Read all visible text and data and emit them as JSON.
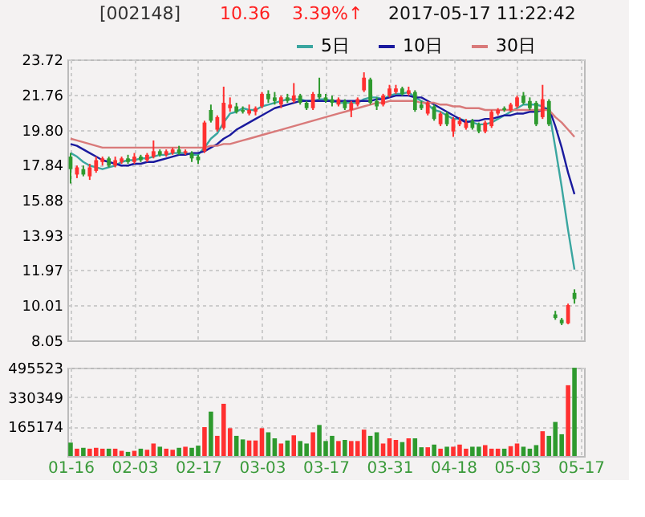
{
  "chart_data": [
    {
      "type": "candlestick",
      "annotations": [
        "[002148]",
        "10.36",
        "3.39%↑",
        "2017-05-17 11:22:42"
      ],
      "categories": [
        "01-16",
        null,
        null,
        null,
        null,
        null,
        null,
        null,
        null,
        null,
        "02-03",
        null,
        null,
        null,
        null,
        null,
        null,
        null,
        null,
        null,
        "02-17",
        null,
        null,
        null,
        null,
        null,
        null,
        null,
        null,
        null,
        "03-03",
        null,
        null,
        null,
        null,
        null,
        null,
        null,
        null,
        null,
        "03-17",
        null,
        null,
        null,
        null,
        null,
        null,
        null,
        null,
        null,
        "03-31",
        null,
        null,
        null,
        null,
        null,
        null,
        null,
        null,
        null,
        "04-18",
        null,
        null,
        null,
        null,
        null,
        null,
        null,
        null,
        null,
        "05-03",
        null,
        null,
        null,
        null,
        null,
        null,
        null,
        null,
        null,
        "05-17"
      ],
      "ohlc": [
        [
          18.3,
          18.5,
          16.8,
          17.6
        ],
        [
          17.3,
          17.8,
          17.1,
          17.7
        ],
        [
          17.6,
          17.8,
          17.2,
          17.3
        ],
        [
          17.2,
          17.9,
          17.0,
          17.7
        ],
        [
          17.5,
          18.3,
          17.4,
          18.1
        ],
        [
          18.0,
          18.3,
          17.8,
          18.2
        ],
        [
          18.2,
          18.3,
          17.7,
          17.8
        ],
        [
          17.8,
          18.3,
          17.7,
          18.1
        ],
        [
          18.0,
          18.3,
          17.9,
          18.2
        ],
        [
          18.2,
          18.4,
          17.9,
          18.0
        ],
        [
          18.0,
          18.5,
          17.9,
          18.3
        ],
        [
          18.3,
          18.4,
          18.0,
          18.1
        ],
        [
          18.1,
          18.5,
          18.0,
          18.4
        ],
        [
          18.3,
          19.2,
          18.2,
          18.6
        ],
        [
          18.6,
          18.7,
          18.3,
          18.4
        ],
        [
          18.4,
          18.7,
          18.3,
          18.6
        ],
        [
          18.5,
          18.8,
          18.4,
          18.7
        ],
        [
          18.7,
          18.9,
          18.4,
          18.5
        ],
        [
          18.5,
          18.7,
          18.4,
          18.6
        ],
        [
          18.5,
          18.6,
          18.0,
          18.2
        ],
        [
          18.3,
          18.4,
          17.9,
          18.1
        ],
        [
          18.6,
          20.3,
          18.5,
          20.2
        ],
        [
          20.9,
          21.2,
          20.2,
          20.3
        ],
        [
          19.8,
          20.6,
          19.7,
          20.5
        ],
        [
          19.9,
          22.2,
          19.8,
          21.3
        ],
        [
          21.0,
          21.6,
          20.8,
          21.2
        ],
        [
          21.1,
          21.3,
          20.7,
          20.8
        ],
        [
          20.9,
          21.1,
          20.7,
          20.8
        ],
        [
          20.7,
          21.2,
          20.6,
          20.9
        ],
        [
          20.8,
          21.1,
          20.6,
          21.0
        ],
        [
          21.1,
          21.9,
          21.0,
          21.8
        ],
        [
          21.8,
          22.0,
          21.3,
          21.5
        ],
        [
          21.6,
          21.9,
          21.2,
          21.4
        ],
        [
          21.2,
          21.7,
          21.0,
          21.6
        ],
        [
          21.6,
          21.8,
          21.3,
          21.4
        ],
        [
          21.4,
          22.4,
          21.3,
          21.7
        ],
        [
          21.7,
          21.8,
          21.2,
          21.3
        ],
        [
          21.3,
          21.4,
          20.9,
          21.0
        ],
        [
          21.0,
          21.9,
          20.9,
          21.8
        ],
        [
          21.8,
          22.7,
          21.5,
          21.6
        ],
        [
          21.6,
          21.8,
          21.3,
          21.4
        ],
        [
          21.5,
          21.7,
          21.1,
          21.3
        ],
        [
          21.2,
          21.6,
          21.1,
          21.5
        ],
        [
          21.4,
          21.5,
          20.9,
          21.0
        ],
        [
          20.9,
          21.4,
          20.5,
          21.3
        ],
        [
          21.2,
          21.6,
          21.1,
          21.5
        ],
        [
          22.0,
          23.0,
          21.9,
          22.7
        ],
        [
          22.6,
          22.7,
          21.2,
          21.3
        ],
        [
          21.4,
          21.6,
          20.9,
          21.1
        ],
        [
          21.2,
          21.8,
          21.1,
          21.7
        ],
        [
          21.7,
          22.3,
          21.6,
          22.1
        ],
        [
          21.9,
          22.3,
          21.8,
          22.1
        ],
        [
          22.1,
          22.2,
          21.7,
          21.8
        ],
        [
          21.8,
          22.2,
          21.7,
          22.0
        ],
        [
          21.9,
          22.0,
          20.8,
          20.9
        ],
        [
          21.2,
          21.4,
          20.9,
          21.0
        ],
        [
          20.7,
          21.4,
          20.6,
          21.3
        ],
        [
          21.1,
          21.2,
          20.3,
          20.4
        ],
        [
          20.1,
          20.8,
          20.0,
          20.7
        ],
        [
          20.7,
          20.8,
          20.0,
          20.1
        ],
        [
          19.7,
          20.5,
          19.4,
          20.4
        ],
        [
          20.1,
          20.5,
          20.0,
          20.3
        ],
        [
          19.9,
          20.4,
          19.8,
          20.2
        ],
        [
          20.3,
          20.4,
          19.8,
          19.9
        ],
        [
          20.1,
          20.2,
          19.6,
          19.7
        ],
        [
          19.7,
          20.3,
          19.6,
          20.2
        ],
        [
          20.0,
          20.9,
          19.9,
          20.8
        ],
        [
          20.7,
          21.0,
          20.6,
          20.9
        ],
        [
          21.0,
          21.1,
          20.8,
          20.9
        ],
        [
          20.9,
          21.3,
          20.8,
          21.2
        ],
        [
          21.1,
          21.7,
          21.0,
          21.6
        ],
        [
          21.7,
          21.9,
          21.2,
          21.3
        ],
        [
          21.4,
          21.6,
          20.9,
          21.0
        ],
        [
          21.3,
          21.4,
          20.0,
          20.1
        ],
        [
          20.5,
          22.3,
          20.4,
          21.5
        ],
        [
          21.4,
          21.5,
          20.0,
          20.1
        ],
        [
          9.5,
          9.7,
          9.2,
          9.3
        ],
        [
          9.2,
          9.3,
          8.9,
          9.0
        ],
        [
          9.0,
          10.1,
          8.95,
          10.02
        ],
        [
          10.7,
          10.9,
          10.1,
          10.36
        ],
        null
      ],
      "colors": [
        "#2e9a2e",
        "#ff3030",
        "#2e9a2e",
        "#ff3030",
        "#ff3030",
        "#ff3030",
        "#2e9a2e",
        "#ff3030",
        "#ff3030",
        "#2e9a2e",
        "#ff3030",
        "#2e9a2e",
        "#ff3030",
        "#ff3030",
        "#2e9a2e",
        "#ff3030",
        "#ff3030",
        "#2e9a2e",
        "#ff3030",
        "#2e9a2e",
        "#2e9a2e",
        "#ff3030",
        "#2e9a2e",
        "#ff3030",
        "#ff3030",
        "#ff3030",
        "#2e9a2e",
        "#2e9a2e",
        "#ff3030",
        "#ff3030",
        "#ff3030",
        "#2e9a2e",
        "#2e9a2e",
        "#ff3030",
        "#2e9a2e",
        "#ff3030",
        "#2e9a2e",
        "#2e9a2e",
        "#ff3030",
        "#2e9a2e",
        "#2e9a2e",
        "#2e9a2e",
        "#ff3030",
        "#2e9a2e",
        "#ff3030",
        "#ff3030",
        "#ff3030",
        "#2e9a2e",
        "#2e9a2e",
        "#ff3030",
        "#ff3030",
        "#ff3030",
        "#2e9a2e",
        "#ff3030",
        "#2e9a2e",
        "#2e9a2e",
        "#ff3030",
        "#2e9a2e",
        "#ff3030",
        "#2e9a2e",
        "#ff3030",
        "#ff3030",
        "#ff3030",
        "#2e9a2e",
        "#2e9a2e",
        "#ff3030",
        "#ff3030",
        "#ff3030",
        "#2e9a2e",
        "#ff3030",
        "#ff3030",
        "#2e9a2e",
        "#2e9a2e",
        "#2e9a2e",
        "#ff3030",
        "#2e9a2e",
        "#2e9a2e",
        "#2e9a2e",
        "#ff3030",
        "#2e9a2e",
        null
      ],
      "series": [
        {
          "type": "line",
          "name": "5日",
          "color": "#3aa6a0",
          "values": [
            18.5,
            18.3,
            18.0,
            17.8,
            17.7,
            17.6,
            17.7,
            17.8,
            18.0,
            18.1,
            18.1,
            18.2,
            18.2,
            18.3,
            18.4,
            18.4,
            18.5,
            18.5,
            18.5,
            18.4,
            18.4,
            18.8,
            19.3,
            19.6,
            20.2,
            20.7,
            20.8,
            21.0,
            20.9,
            20.9,
            21.1,
            21.2,
            21.3,
            21.4,
            21.5,
            21.5,
            21.5,
            21.4,
            21.4,
            21.5,
            21.5,
            21.4,
            21.3,
            21.3,
            21.3,
            21.3,
            21.5,
            21.6,
            21.6,
            21.5,
            21.7,
            21.8,
            21.8,
            21.9,
            21.6,
            21.4,
            21.2,
            20.9,
            20.8,
            20.6,
            20.4,
            20.4,
            20.3,
            20.2,
            20.1,
            20.1,
            20.2,
            20.4,
            20.6,
            20.8,
            21.0,
            21.2,
            21.2,
            21.2,
            21.1,
            20.9,
            18.8,
            16.6,
            14.2,
            12.0,
            null
          ]
        },
        {
          "type": "line",
          "name": "10日",
          "color": "#1a1a9e",
          "values": [
            19.0,
            18.9,
            18.7,
            18.5,
            18.3,
            18.1,
            18.0,
            17.9,
            17.8,
            17.8,
            17.9,
            17.9,
            18.0,
            18.0,
            18.1,
            18.2,
            18.3,
            18.4,
            18.4,
            18.5,
            18.5,
            18.6,
            18.8,
            19.0,
            19.3,
            19.5,
            19.8,
            20.0,
            20.2,
            20.4,
            20.6,
            20.8,
            21.0,
            21.1,
            21.2,
            21.3,
            21.4,
            21.4,
            21.4,
            21.4,
            21.4,
            21.4,
            21.4,
            21.4,
            21.4,
            21.4,
            21.4,
            21.4,
            21.5,
            21.5,
            21.6,
            21.7,
            21.7,
            21.7,
            21.6,
            21.6,
            21.4,
            21.2,
            21.0,
            20.8,
            20.6,
            20.4,
            20.2,
            20.3,
            20.3,
            20.4,
            20.4,
            20.5,
            20.6,
            20.6,
            20.7,
            20.7,
            20.8,
            20.8,
            20.9,
            21.0,
            20.0,
            18.8,
            17.4,
            16.2,
            null
          ]
        },
        {
          "type": "line",
          "name": "30日",
          "color": "#d97a7a",
          "values": [
            19.3,
            19.2,
            19.1,
            19.0,
            18.9,
            18.8,
            18.8,
            18.8,
            18.8,
            18.8,
            18.8,
            18.8,
            18.8,
            18.8,
            18.8,
            18.8,
            18.8,
            18.8,
            18.8,
            18.8,
            18.8,
            18.8,
            18.9,
            18.9,
            19.0,
            19.0,
            19.1,
            19.2,
            19.3,
            19.4,
            19.5,
            19.6,
            19.7,
            19.8,
            19.9,
            20.0,
            20.1,
            20.2,
            20.3,
            20.4,
            20.5,
            20.6,
            20.7,
            20.8,
            20.9,
            21.0,
            21.1,
            21.2,
            21.3,
            21.3,
            21.4,
            21.4,
            21.4,
            21.4,
            21.4,
            21.3,
            21.3,
            21.3,
            21.2,
            21.2,
            21.1,
            21.1,
            21.0,
            21.0,
            21.0,
            20.9,
            20.9,
            20.9,
            20.9,
            20.9,
            20.9,
            20.9,
            20.9,
            20.9,
            20.9,
            20.9,
            20.5,
            20.2,
            19.8,
            19.4,
            null
          ]
        }
      ],
      "ylim": [
        8.05,
        23.72
      ],
      "yticks": [
        8.05,
        10.01,
        11.97,
        13.93,
        15.88,
        17.84,
        {
          "value": 19.8,
          "label": "19.80"
        },
        21.76,
        23.72
      ],
      "grid": true,
      "legend": "top right",
      "line_style": "solid",
      "marker": "none",
      "tick_labels": "y"
    },
    {
      "type": "bar",
      "categories": [
        "01-16",
        null,
        null,
        null,
        null,
        null,
        null,
        null,
        null,
        null,
        "02-03",
        null,
        null,
        null,
        null,
        null,
        null,
        null,
        null,
        null,
        "02-17",
        null,
        null,
        null,
        null,
        null,
        null,
        null,
        null,
        null,
        "03-03",
        null,
        null,
        null,
        null,
        null,
        null,
        null,
        null,
        null,
        "03-17",
        null,
        null,
        null,
        null,
        null,
        null,
        null,
        null,
        null,
        "03-31",
        null,
        null,
        null,
        null,
        null,
        null,
        null,
        null,
        null,
        "04-18",
        null,
        null,
        null,
        null,
        null,
        null,
        null,
        null,
        null,
        "05-03",
        null,
        null,
        null,
        null,
        null,
        null,
        null,
        null,
        null,
        "05-17"
      ],
      "values": [
        75000,
        41000,
        46000,
        41000,
        46000,
        41000,
        41000,
        41000,
        29000,
        23000,
        29000,
        41000,
        35000,
        70000,
        52000,
        41000,
        35000,
        46000,
        52000,
        46000,
        58000,
        162000,
        249000,
        113000,
        293000,
        156000,
        113000,
        93000,
        87000,
        87000,
        156000,
        133000,
        99000,
        70000,
        87000,
        116000,
        84000,
        70000,
        133000,
        174000,
        84000,
        113000,
        84000,
        90000,
        84000,
        84000,
        148000,
        113000,
        133000,
        70000,
        99000,
        90000,
        78000,
        99000,
        99000,
        49000,
        49000,
        64000,
        41000,
        52000,
        52000,
        64000,
        41000,
        52000,
        52000,
        61000,
        41000,
        41000,
        41000,
        55000,
        70000,
        52000,
        41000,
        61000,
        139000,
        113000,
        191000,
        122000,
        397000,
        495000,
        null
      ],
      "colors": [
        "#2e9a2e",
        "#ff3030",
        "#2e9a2e",
        "#ff3030",
        "#ff3030",
        "#ff3030",
        "#2e9a2e",
        "#ff3030",
        "#ff3030",
        "#2e9a2e",
        "#ff3030",
        "#2e9a2e",
        "#ff3030",
        "#ff3030",
        "#2e9a2e",
        "#ff3030",
        "#ff3030",
        "#2e9a2e",
        "#ff3030",
        "#2e9a2e",
        "#2e9a2e",
        "#ff3030",
        "#2e9a2e",
        "#ff3030",
        "#ff3030",
        "#ff3030",
        "#2e9a2e",
        "#2e9a2e",
        "#ff3030",
        "#ff3030",
        "#ff3030",
        "#2e9a2e",
        "#2e9a2e",
        "#ff3030",
        "#2e9a2e",
        "#ff3030",
        "#2e9a2e",
        "#2e9a2e",
        "#ff3030",
        "#2e9a2e",
        "#2e9a2e",
        "#2e9a2e",
        "#ff3030",
        "#2e9a2e",
        "#ff3030",
        "#ff3030",
        "#ff3030",
        "#2e9a2e",
        "#2e9a2e",
        "#ff3030",
        "#ff3030",
        "#ff3030",
        "#2e9a2e",
        "#ff3030",
        "#2e9a2e",
        "#2e9a2e",
        "#ff3030",
        "#2e9a2e",
        "#ff3030",
        "#2e9a2e",
        "#ff3030",
        "#ff3030",
        "#ff3030",
        "#2e9a2e",
        "#2e9a2e",
        "#ff3030",
        "#ff3030",
        "#ff3030",
        "#2e9a2e",
        "#ff3030",
        "#ff3030",
        "#2e9a2e",
        "#2e9a2e",
        "#2e9a2e",
        "#ff3030",
        "#2e9a2e",
        "#2e9a2e",
        "#2e9a2e",
        "#ff3030",
        "#2e9a2e",
        null
      ],
      "ylim": [
        0,
        495523
      ],
      "yticks": [
        165174,
        330349,
        495523
      ],
      "grid": true
    }
  ]
}
